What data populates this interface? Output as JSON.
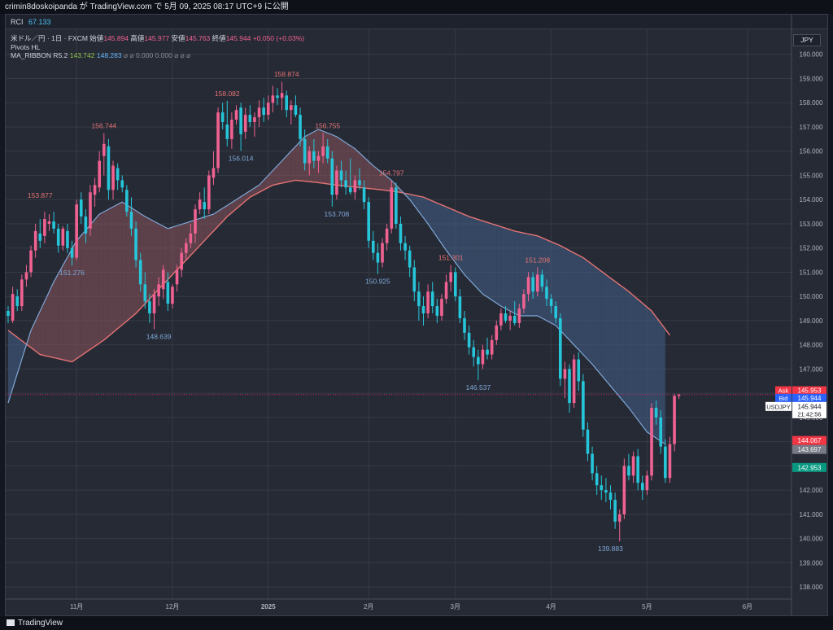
{
  "header": {
    "user": "crimin8doskoipanda",
    "text": "crimin8doskoipanda が TradingView.com で 5月 09, 2025 08:17 UTC+9 に公開"
  },
  "rci": {
    "label": "RCI",
    "value": "67.133"
  },
  "legend": {
    "symbol": "米ドル／円 · 1日 · FXCM",
    "open_label": "始値",
    "open": "145.894",
    "high_label": "高値",
    "high": "145.977",
    "low_label": "安値",
    "low": "145.763",
    "close_label": "終値",
    "close": "145.944",
    "change": "+0.050 (+0.03%)",
    "pivots": "Pivots HL",
    "ma_label": "MA_RIBBON R5.2",
    "ma1": "143.742",
    "ma2": "148.283",
    "ma_rest": "⌀ ⌀ 0.000 0.000 ⌀ ⌀ ⌀"
  },
  "currency": "JPY",
  "footer": {
    "brand": "TradingView"
  },
  "colors": {
    "up": "#f06292",
    "down": "#26c6da",
    "ma_fast": "#e57373",
    "ma_slow": "#7fa7d6",
    "ask": "#f23645",
    "bid": "#2962ff"
  },
  "chart_data": {
    "type": "candlestick",
    "symbol": "USDJPY",
    "timeframe": "1D",
    "ylim": [
      137.5,
      161.0
    ],
    "y_ticks": [
      138,
      139,
      140,
      141,
      142,
      143,
      144,
      145,
      146,
      147,
      148,
      149,
      150,
      151,
      152,
      153,
      154,
      155,
      156,
      157,
      158,
      159,
      160
    ],
    "x_ticks": [
      {
        "label": "11月",
        "idx": 15
      },
      {
        "label": "12月",
        "idx": 36
      },
      {
        "label": "2025",
        "idx": 57
      },
      {
        "label": "2月",
        "idx": 79
      },
      {
        "label": "3月",
        "idx": 98
      },
      {
        "label": "4月",
        "idx": 119
      },
      {
        "label": "5月",
        "idx": 140
      },
      {
        "label": "6月",
        "idx": 162
      }
    ],
    "pivots": [
      {
        "idx": 7,
        "value": 153.877,
        "type": "high",
        "label": "153.877"
      },
      {
        "idx": 14,
        "value": 151.276,
        "type": "low",
        "label": "151.276"
      },
      {
        "idx": 21,
        "value": 156.744,
        "type": "high",
        "label": "156.744"
      },
      {
        "idx": 33,
        "value": 148.639,
        "type": "low",
        "label": "148.639"
      },
      {
        "idx": 48,
        "value": 158.082,
        "type": "high",
        "label": "158.082"
      },
      {
        "idx": 51,
        "value": 156.014,
        "type": "low",
        "label": "156.014"
      },
      {
        "idx": 61,
        "value": 158.874,
        "type": "high",
        "label": "158.874"
      },
      {
        "idx": 70,
        "value": 156.755,
        "type": "high",
        "label": "156.755"
      },
      {
        "idx": 72,
        "value": 153.708,
        "type": "low",
        "label": "153.708"
      },
      {
        "idx": 84,
        "value": 154.797,
        "type": "high",
        "label": "154.797"
      },
      {
        "idx": 81,
        "value": 150.925,
        "type": "low",
        "label": "150.925"
      },
      {
        "idx": 97,
        "value": 151.301,
        "type": "high",
        "label": "151.301"
      },
      {
        "idx": 103,
        "value": 146.537,
        "type": "low",
        "label": "146.537"
      },
      {
        "idx": 116,
        "value": 151.208,
        "type": "high",
        "label": "151.208"
      },
      {
        "idx": 132,
        "value": 139.883,
        "type": "low",
        "label": "139.883"
      }
    ],
    "price_tags": [
      {
        "name": "ask",
        "label": "Ask",
        "value": 145.953,
        "color": "#f23645"
      },
      {
        "name": "bid",
        "label": "Bid",
        "value": 145.944,
        "color": "#2962ff"
      },
      {
        "name": "last",
        "label": "USDJPY",
        "value": 145.944,
        "countdown": "21:42:56",
        "color": "#ffffff"
      },
      {
        "name": "level1",
        "label": "",
        "value": 144.067,
        "color": "#f23645"
      },
      {
        "name": "level2",
        "label": "",
        "value": 143.697,
        "color": "#787b86"
      },
      {
        "name": "level3",
        "label": "",
        "value": 142.953,
        "color": "#089981"
      }
    ],
    "ma_fast": [
      [
        0,
        148.6
      ],
      [
        7,
        147.6
      ],
      [
        14,
        147.3
      ],
      [
        21,
        148.2
      ],
      [
        28,
        149.3
      ],
      [
        33,
        150.3
      ],
      [
        38,
        151.3
      ],
      [
        43,
        152.3
      ],
      [
        48,
        153.3
      ],
      [
        53,
        154.1
      ],
      [
        58,
        154.6
      ],
      [
        63,
        154.8
      ],
      [
        68,
        154.7
      ],
      [
        72,
        154.6
      ],
      [
        77,
        154.5
      ],
      [
        82,
        154.4
      ],
      [
        86,
        154.3
      ],
      [
        91,
        154.1
      ],
      [
        96,
        153.7
      ],
      [
        101,
        153.3
      ],
      [
        106,
        153.0
      ],
      [
        111,
        152.7
      ],
      [
        116,
        152.5
      ],
      [
        121,
        152.1
      ],
      [
        126,
        151.6
      ],
      [
        131,
        150.9
      ],
      [
        136,
        150.2
      ],
      [
        141,
        149.4
      ],
      [
        145,
        148.4
      ]
    ],
    "ma_slow": [
      [
        0,
        145.6
      ],
      [
        5,
        148.6
      ],
      [
        10,
        150.6
      ],
      [
        15,
        152.3
      ],
      [
        20,
        153.4
      ],
      [
        25,
        153.9
      ],
      [
        30,
        153.3
      ],
      [
        35,
        152.8
      ],
      [
        40,
        153.1
      ],
      [
        45,
        153.4
      ],
      [
        50,
        154.0
      ],
      [
        55,
        154.6
      ],
      [
        60,
        155.6
      ],
      [
        65,
        156.6
      ],
      [
        68,
        156.9
      ],
      [
        72,
        156.6
      ],
      [
        76,
        156.1
      ],
      [
        80,
        155.4
      ],
      [
        84,
        154.8
      ],
      [
        88,
        154.0
      ],
      [
        92,
        153.0
      ],
      [
        96,
        151.9
      ],
      [
        100,
        150.9
      ],
      [
        104,
        150.1
      ],
      [
        108,
        149.6
      ],
      [
        112,
        149.2
      ],
      [
        116,
        149.2
      ],
      [
        120,
        148.8
      ],
      [
        124,
        148.0
      ],
      [
        128,
        147.2
      ],
      [
        132,
        146.3
      ],
      [
        136,
        145.4
      ],
      [
        140,
        144.4
      ],
      [
        144,
        143.9
      ]
    ],
    "candles": [
      [
        149.4,
        149.6,
        148.9,
        149.2
      ],
      [
        149.0,
        150.4,
        148.9,
        150.1
      ],
      [
        150.0,
        150.3,
        149.4,
        149.6
      ],
      [
        149.6,
        150.9,
        149.4,
        150.7
      ],
      [
        150.7,
        151.3,
        150.4,
        151.0
      ],
      [
        151.0,
        152.1,
        150.8,
        151.9
      ],
      [
        151.9,
        153.0,
        151.6,
        152.7
      ],
      [
        152.6,
        153.2,
        152.0,
        152.3
      ],
      [
        152.5,
        153.5,
        152.2,
        153.2
      ],
      [
        153.0,
        153.4,
        152.7,
        153.1
      ],
      [
        153.1,
        153.5,
        152.6,
        152.8
      ],
      [
        152.8,
        153.0,
        151.8,
        152.1
      ],
      [
        152.1,
        152.9,
        151.9,
        152.8
      ],
      [
        152.7,
        153.0,
        151.8,
        152.0
      ],
      [
        152.0,
        152.3,
        151.276,
        151.6
      ],
      [
        151.6,
        154.0,
        151.5,
        153.8
      ],
      [
        154.0,
        154.3,
        153.0,
        153.3
      ],
      [
        153.3,
        153.6,
        152.2,
        152.6
      ],
      [
        152.8,
        154.6,
        152.5,
        154.3
      ],
      [
        154.2,
        154.9,
        153.7,
        154.6
      ],
      [
        154.5,
        156.0,
        154.3,
        155.6
      ],
      [
        155.8,
        156.744,
        155.0,
        156.3
      ],
      [
        156.2,
        156.5,
        154.0,
        154.4
      ],
      [
        154.4,
        155.6,
        154.0,
        155.4
      ],
      [
        155.3,
        155.5,
        154.4,
        154.8
      ],
      [
        154.8,
        155.0,
        154.3,
        154.5
      ],
      [
        154.4,
        154.6,
        153.3,
        153.5
      ],
      [
        153.5,
        154.1,
        152.5,
        152.8
      ],
      [
        152.8,
        153.1,
        151.2,
        151.5
      ],
      [
        151.5,
        151.8,
        150.2,
        150.5
      ],
      [
        150.5,
        151.0,
        149.5,
        149.8
      ],
      [
        149.8,
        150.1,
        148.9,
        149.3
      ],
      [
        149.3,
        150.3,
        148.639,
        150.1
      ],
      [
        150.0,
        150.8,
        149.6,
        150.5
      ],
      [
        150.3,
        151.3,
        149.9,
        151.1
      ],
      [
        150.6,
        151.0,
        149.4,
        149.7
      ],
      [
        149.7,
        150.5,
        149.5,
        150.4
      ],
      [
        150.5,
        151.3,
        150.2,
        151.1
      ],
      [
        151.1,
        152.0,
        150.8,
        151.8
      ],
      [
        151.8,
        152.4,
        151.5,
        152.2
      ],
      [
        152.2,
        153.0,
        152.0,
        152.6
      ],
      [
        152.6,
        153.8,
        152.2,
        153.6
      ],
      [
        153.6,
        154.3,
        153.4,
        154.0
      ],
      [
        153.9,
        154.5,
        153.2,
        153.6
      ],
      [
        153.6,
        155.2,
        153.4,
        155.0
      ],
      [
        154.9,
        156.0,
        154.6,
        155.3
      ],
      [
        155.3,
        157.8,
        155.1,
        157.6
      ],
      [
        157.6,
        158.0,
        156.9,
        157.2
      ],
      [
        157.1,
        158.082,
        156.2,
        156.5
      ],
      [
        156.5,
        157.6,
        156.1,
        157.3
      ],
      [
        157.3,
        157.9,
        157.1,
        157.7
      ],
      [
        157.8,
        158.0,
        156.014,
        156.7
      ],
      [
        156.8,
        157.8,
        156.5,
        157.5
      ],
      [
        157.5,
        157.9,
        157.0,
        157.2
      ],
      [
        157.2,
        157.6,
        156.6,
        157.4
      ],
      [
        157.4,
        158.1,
        157.0,
        157.8
      ],
      [
        157.8,
        158.2,
        157.2,
        157.5
      ],
      [
        157.5,
        158.3,
        157.3,
        158.0
      ],
      [
        158.0,
        158.7,
        157.6,
        158.3
      ],
      [
        158.3,
        158.6,
        157.9,
        158.2
      ],
      [
        158.2,
        158.874,
        157.7,
        158.4
      ],
      [
        158.3,
        158.5,
        157.4,
        157.7
      ],
      [
        157.7,
        158.1,
        157.1,
        157.9
      ],
      [
        157.9,
        158.3,
        157.4,
        157.5
      ],
      [
        157.5,
        157.8,
        156.2,
        156.5
      ],
      [
        156.5,
        156.9,
        155.2,
        155.5
      ],
      [
        155.5,
        156.2,
        155.0,
        156.0
      ],
      [
        156.0,
        156.5,
        155.3,
        155.6
      ],
      [
        155.6,
        156.0,
        155.1,
        155.8
      ],
      [
        155.8,
        156.755,
        155.5,
        156.2
      ],
      [
        156.2,
        156.5,
        155.5,
        155.7
      ],
      [
        155.7,
        156.0,
        153.708,
        154.2
      ],
      [
        154.2,
        155.4,
        154.0,
        155.2
      ],
      [
        155.2,
        155.6,
        154.5,
        154.8
      ],
      [
        154.8,
        155.2,
        154.2,
        154.5
      ],
      [
        154.5,
        155.7,
        154.2,
        154.3
      ],
      [
        154.3,
        155.0,
        154.0,
        154.8
      ],
      [
        154.8,
        155.3,
        154.4,
        154.6
      ],
      [
        154.5,
        154.8,
        153.6,
        153.9
      ],
      [
        153.9,
        154.1,
        152.0,
        152.3
      ],
      [
        152.3,
        152.7,
        151.5,
        151.8
      ],
      [
        151.8,
        152.2,
        150.925,
        151.4
      ],
      [
        151.4,
        152.4,
        151.2,
        152.2
      ],
      [
        152.2,
        153.0,
        151.9,
        152.8
      ],
      [
        152.8,
        154.797,
        152.6,
        154.5
      ],
      [
        154.5,
        154.7,
        152.8,
        153.0
      ],
      [
        153.0,
        153.3,
        151.9,
        152.2
      ],
      [
        152.2,
        152.5,
        151.5,
        151.9
      ],
      [
        151.9,
        152.1,
        150.8,
        151.2
      ],
      [
        151.2,
        151.5,
        149.8,
        150.2
      ],
      [
        150.2,
        150.6,
        149.0,
        149.6
      ],
      [
        149.6,
        150.0,
        148.8,
        149.3
      ],
      [
        149.3,
        150.5,
        149.1,
        150.2
      ],
      [
        150.2,
        150.6,
        149.3,
        149.6
      ],
      [
        149.6,
        149.9,
        148.9,
        149.2
      ],
      [
        149.2,
        150.1,
        149.0,
        149.9
      ],
      [
        149.9,
        150.9,
        149.7,
        150.6
      ],
      [
        150.6,
        151.301,
        150.2,
        151.0
      ],
      [
        151.0,
        151.2,
        149.8,
        150.0
      ],
      [
        150.0,
        150.3,
        148.9,
        149.1
      ],
      [
        149.1,
        149.4,
        148.2,
        148.5
      ],
      [
        148.5,
        148.8,
        147.6,
        147.9
      ],
      [
        147.9,
        148.2,
        147.1,
        147.5
      ],
      [
        147.5,
        147.8,
        146.537,
        147.2
      ],
      [
        147.2,
        148.0,
        147.0,
        147.8
      ],
      [
        147.8,
        148.3,
        147.4,
        147.6
      ],
      [
        147.6,
        148.4,
        147.4,
        148.2
      ],
      [
        148.2,
        149.0,
        148.0,
        148.8
      ],
      [
        148.8,
        149.5,
        148.6,
        149.3
      ],
      [
        149.3,
        149.6,
        148.9,
        149.0
      ],
      [
        149.0,
        149.4,
        148.6,
        149.2
      ],
      [
        149.2,
        149.8,
        148.8,
        148.9
      ],
      [
        148.9,
        149.7,
        148.7,
        149.5
      ],
      [
        149.5,
        150.3,
        149.3,
        150.1
      ],
      [
        150.1,
        151.0,
        149.8,
        150.8
      ],
      [
        150.8,
        151.0,
        149.9,
        150.2
      ],
      [
        150.2,
        151.208,
        150.0,
        150.9
      ],
      [
        150.9,
        151.1,
        150.2,
        150.4
      ],
      [
        150.4,
        150.7,
        149.6,
        149.9
      ],
      [
        149.9,
        150.1,
        149.3,
        149.6
      ],
      [
        149.6,
        149.8,
        148.9,
        149.1
      ],
      [
        149.1,
        149.3,
        146.3,
        146.6
      ],
      [
        146.6,
        147.3,
        145.8,
        147.0
      ],
      [
        147.0,
        147.2,
        145.2,
        145.6
      ],
      [
        145.6,
        147.6,
        145.4,
        147.4
      ],
      [
        147.4,
        147.7,
        146.1,
        146.5
      ],
      [
        146.5,
        146.8,
        144.2,
        144.5
      ],
      [
        144.5,
        144.8,
        143.2,
        143.5
      ],
      [
        143.5,
        143.8,
        142.4,
        142.7
      ],
      [
        142.7,
        143.0,
        141.8,
        142.2
      ],
      [
        142.2,
        142.6,
        141.6,
        142.0
      ],
      [
        142.0,
        142.5,
        141.5,
        141.9
      ],
      [
        141.9,
        142.2,
        141.2,
        141.6
      ],
      [
        141.6,
        141.9,
        140.4,
        140.7
      ],
      [
        140.7,
        141.2,
        139.883,
        141.0
      ],
      [
        141.0,
        143.3,
        140.8,
        143.0
      ],
      [
        143.0,
        143.5,
        142.4,
        142.6
      ],
      [
        142.6,
        143.6,
        142.3,
        143.4
      ],
      [
        143.4,
        143.7,
        142.0,
        142.3
      ],
      [
        142.3,
        142.6,
        141.6,
        142.0
      ],
      [
        142.0,
        142.8,
        141.8,
        142.6
      ],
      [
        142.6,
        145.6,
        142.4,
        145.4
      ],
      [
        145.4,
        145.7,
        144.7,
        145.0
      ],
      [
        145.0,
        145.3,
        143.5,
        143.8
      ],
      [
        143.8,
        144.1,
        142.3,
        142.5
      ],
      [
        142.5,
        144.2,
        142.3,
        143.9
      ],
      [
        143.9,
        145.977,
        143.6,
        145.894
      ],
      [
        145.894,
        145.977,
        145.763,
        145.944
      ]
    ]
  }
}
